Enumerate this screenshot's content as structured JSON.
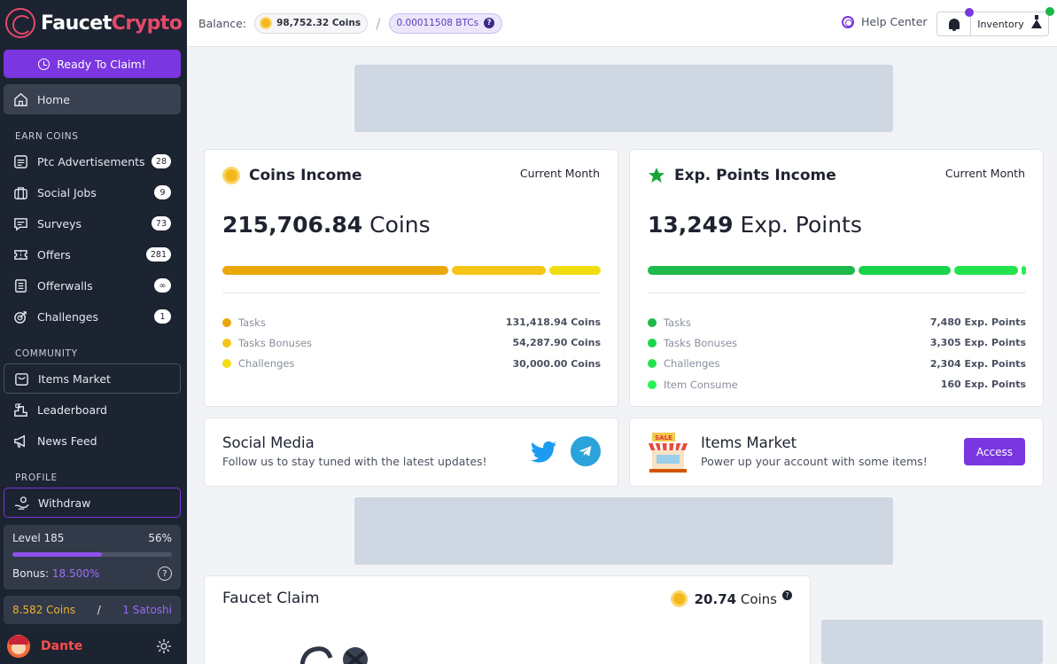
{
  "brand": {
    "name_part1": "Faucet",
    "name_part2": "Crypto",
    "accent": "#7a36e0",
    "logo_color": "#e34a6a"
  },
  "sidebar": {
    "claim_button": "Ready To Claim!",
    "home": "Home",
    "earn_label": "EARN COINS",
    "earn_items": [
      {
        "label": "Ptc Advertisements",
        "badge": "28",
        "icon": "ptc-icon"
      },
      {
        "label": "Social Jobs",
        "badge": "9",
        "icon": "briefcase-icon"
      },
      {
        "label": "Surveys",
        "badge": "73",
        "icon": "survey-icon"
      },
      {
        "label": "Offers",
        "badge": "281",
        "icon": "ticket-icon"
      },
      {
        "label": "Offerwalls",
        "badge": "∞",
        "icon": "offerwall-icon"
      },
      {
        "label": "Challenges",
        "badge": "1",
        "icon": "target-icon"
      }
    ],
    "community_label": "COMMUNITY",
    "community_items": [
      {
        "label": "Items Market",
        "icon": "market-icon"
      },
      {
        "label": "Leaderboard",
        "icon": "podium-icon"
      },
      {
        "label": "News Feed",
        "icon": "megaphone-icon"
      }
    ],
    "profile_label": "PROFILE",
    "withdraw": "Withdraw",
    "level": {
      "label": "Level 185",
      "percent_text": "56%",
      "progress": 0.56,
      "bonus_label": "Bonus:",
      "bonus_value": "18.500%"
    },
    "earnings": {
      "coins": "8.582 Coins",
      "separator": "/",
      "satoshi": "1 Satoshi"
    },
    "user": {
      "name": "Dante"
    }
  },
  "topbar": {
    "balance_label": "Balance:",
    "coins": "98,752.32 Coins",
    "separator": "/",
    "btc": "0.00011508 BTCs",
    "help": "Help Center",
    "inventory": "Inventory"
  },
  "coins_income": {
    "title": "Coins Income",
    "period": "Current Month",
    "amount": "215,706.84",
    "unit": "Coins",
    "items": [
      {
        "label": "Tasks",
        "value": "131,418.94 Coins",
        "color": "#e8a80c",
        "share": 0.609
      },
      {
        "label": "Tasks Bonuses",
        "value": "54,287.90 Coins",
        "color": "#f5c518",
        "share": 0.252
      },
      {
        "label": "Challenges",
        "value": "30,000.00 Coins",
        "color": "#f2dd12",
        "share": 0.139
      }
    ]
  },
  "exp_income": {
    "title": "Exp. Points Income",
    "period": "Current Month",
    "amount": "13,249",
    "unit": "Exp. Points",
    "items": [
      {
        "label": "Tasks",
        "value": "7,480 Exp. Points",
        "color": "#1fb84a",
        "share": 0.565
      },
      {
        "label": "Tasks Bonuses",
        "value": "3,305 Exp. Points",
        "color": "#18d44b",
        "share": 0.249
      },
      {
        "label": "Challenges",
        "value": "2,304 Exp. Points",
        "color": "#22e34d",
        "share": 0.174
      },
      {
        "label": "Item Consume",
        "value": "160 Exp. Points",
        "color": "#2bf054",
        "share": 0.012
      }
    ]
  },
  "social": {
    "title": "Social Media",
    "subtitle": "Follow us to stay tuned with the latest updates!"
  },
  "market": {
    "title": "Items Market",
    "subtitle": "Power up your account with some items!",
    "button": "Access",
    "sale_tag": "SALE"
  },
  "faucet": {
    "title": "Faucet Claim",
    "amount": "20.74",
    "unit": "Coins",
    "help": "?"
  }
}
